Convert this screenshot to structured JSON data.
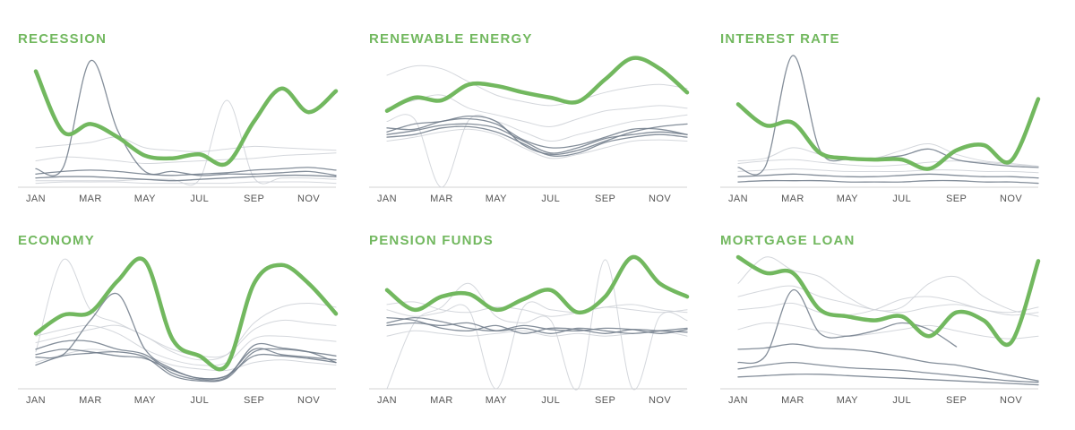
{
  "colors": {
    "highlight": "#72b85f",
    "title": "#72b85f",
    "context_dark": "#6e7a88",
    "context_light": "#cfd3d8",
    "axis": "#d3d3d3",
    "tick_text": "#555555"
  },
  "x_tick_labels": [
    "JAN",
    "MAR",
    "MAY",
    "JUL",
    "SEP",
    "NOV"
  ],
  "chart_data": [
    {
      "type": "line",
      "title": "RECESSION",
      "x": [
        "JAN",
        "FEB",
        "MAR",
        "APR",
        "MAY",
        "JUN",
        "JUL",
        "AUG",
        "SEP",
        "OCT",
        "NOV",
        "DEC"
      ],
      "ylim": [
        0,
        100
      ],
      "grid": false,
      "highlight": [
        88,
        42,
        48,
        38,
        24,
        22,
        25,
        18,
        50,
        75,
        57,
        73
      ],
      "context_dark": [
        [
          14,
          15,
          96,
          43,
          12,
          12,
          9,
          10,
          10,
          11,
          12,
          9
        ],
        [
          10,
          12,
          13,
          12,
          10,
          9,
          10,
          11,
          13,
          14,
          15,
          13
        ],
        [
          7,
          8,
          8,
          7,
          6,
          5,
          6,
          7,
          8,
          9,
          9,
          8
        ]
      ],
      "context_light": [
        [
          5,
          5,
          5,
          5,
          6,
          6,
          6,
          66,
          7,
          7,
          7,
          6
        ],
        [
          20,
          23,
          22,
          20,
          18,
          19,
          20,
          21,
          22,
          24,
          25,
          26
        ],
        [
          30,
          32,
          34,
          38,
          30,
          28,
          27,
          29,
          31,
          30,
          29,
          28
        ],
        [
          3,
          4,
          4,
          4,
          3,
          3,
          3,
          3,
          4,
          4,
          4,
          3
        ]
      ]
    },
    {
      "type": "line",
      "title": "RENEWABLE ENERGY",
      "x": [
        "JAN",
        "FEB",
        "MAR",
        "APR",
        "MAY",
        "JUN",
        "JUL",
        "AUG",
        "SEP",
        "OCT",
        "NOV",
        "DEC"
      ],
      "ylim": [
        0,
        100
      ],
      "grid": false,
      "highlight": [
        58,
        68,
        66,
        78,
        77,
        72,
        68,
        65,
        82,
        98,
        90,
        72
      ],
      "context_dark": [
        [
          42,
          48,
          50,
          54,
          50,
          32,
          25,
          28,
          35,
          42,
          46,
          48
        ],
        [
          45,
          44,
          50,
          52,
          48,
          36,
          30,
          32,
          38,
          44,
          44,
          40
        ],
        [
          40,
          43,
          47,
          48,
          45,
          35,
          26,
          30,
          37,
          40,
          42,
          40
        ],
        [
          38,
          40,
          45,
          46,
          42,
          33,
          24,
          26,
          34,
          38,
          40,
          38
        ]
      ],
      "context_light": [
        [
          50,
          52,
          0,
          51,
          50,
          42,
          35,
          40,
          45,
          50,
          52,
          55
        ],
        [
          60,
          66,
          70,
          60,
          55,
          50,
          46,
          52,
          58,
          60,
          62,
          60
        ],
        [
          35,
          38,
          42,
          44,
          40,
          30,
          22,
          25,
          30,
          35,
          36,
          35
        ],
        [
          85,
          92,
          90,
          80,
          70,
          65,
          62,
          66,
          72,
          76,
          78,
          75
        ]
      ]
    },
    {
      "type": "line",
      "title": "INTEREST RATE",
      "x": [
        "JAN",
        "FEB",
        "MAR",
        "APR",
        "MAY",
        "JUN",
        "JUL",
        "AUG",
        "SEP",
        "OCT",
        "NOV",
        "DEC"
      ],
      "ylim": [
        0,
        100
      ],
      "grid": false,
      "highlight": [
        63,
        47,
        49,
        26,
        22,
        21,
        21,
        14,
        28,
        32,
        20,
        67
      ],
      "context_dark": [
        [
          15,
          16,
          100,
          28,
          21,
          22,
          24,
          29,
          21,
          18,
          16,
          15
        ],
        [
          8,
          9,
          10,
          9,
          8,
          8,
          9,
          10,
          9,
          8,
          8,
          7
        ],
        [
          4,
          5,
          5,
          5,
          4,
          4,
          4,
          5,
          5,
          4,
          4,
          3
        ]
      ],
      "context_light": [
        [
          20,
          22,
          30,
          25,
          22,
          22,
          28,
          33,
          25,
          20,
          18,
          16
        ],
        [
          12,
          13,
          14,
          13,
          12,
          12,
          12,
          13,
          13,
          12,
          12,
          11
        ],
        [
          18,
          20,
          21,
          19,
          17,
          16,
          17,
          19,
          20,
          19,
          17,
          16
        ]
      ]
    },
    {
      "type": "line",
      "title": "ECONOMY",
      "x": [
        "JAN",
        "FEB",
        "MAR",
        "APR",
        "MAY",
        "JUN",
        "JUL",
        "AUG",
        "SEP",
        "OCT",
        "NOV",
        "DEC"
      ],
      "ylim": [
        0,
        100
      ],
      "grid": false,
      "highlight": [
        42,
        56,
        58,
        82,
        97,
        38,
        25,
        18,
        80,
        94,
        80,
        57
      ],
      "context_dark": [
        [
          24,
          26,
          52,
          72,
          30,
          15,
          8,
          10,
          30,
          26,
          24,
          22
        ],
        [
          26,
          30,
          28,
          25,
          23,
          14,
          8,
          10,
          25,
          25,
          23,
          20
        ],
        [
          18,
          25,
          27,
          28,
          24,
          10,
          6,
          8,
          28,
          30,
          28,
          25
        ],
        [
          30,
          36,
          36,
          30,
          26,
          12,
          7,
          9,
          33,
          31,
          28,
          20
        ]
      ],
      "context_light": [
        [
          28,
          98,
          60,
          50,
          40,
          30,
          25,
          26,
          45,
          52,
          50,
          48
        ],
        [
          35,
          40,
          45,
          48,
          40,
          28,
          22,
          26,
          50,
          62,
          65,
          62
        ],
        [
          20,
          26,
          30,
          28,
          25,
          18,
          15,
          14,
          20,
          22,
          20,
          18
        ],
        [
          40,
          45,
          48,
          42,
          30,
          22,
          18,
          20,
          38,
          40,
          38,
          36
        ]
      ]
    },
    {
      "type": "line",
      "title": "PENSION FUNDS",
      "x": [
        "JAN",
        "FEB",
        "MAR",
        "APR",
        "MAY",
        "JUN",
        "JUL",
        "AUG",
        "SEP",
        "OCT",
        "NOV",
        "DEC"
      ],
      "ylim": [
        0,
        100
      ],
      "grid": false,
      "highlight": [
        75,
        60,
        70,
        72,
        60,
        68,
        75,
        58,
        70,
        100,
        80,
        70
      ],
      "context_dark": [
        [
          50,
          54,
          51,
          46,
          44,
          48,
          45,
          44,
          46,
          45,
          42,
          45
        ],
        [
          54,
          52,
          46,
          44,
          48,
          42,
          46,
          45,
          42,
          45,
          44,
          43
        ],
        [
          48,
          50,
          48,
          50,
          44,
          46,
          42,
          46,
          44,
          42,
          44,
          46
        ]
      ],
      "context_light": [
        [
          60,
          55,
          58,
          60,
          0,
          62,
          60,
          58,
          62,
          60,
          58,
          60
        ],
        [
          0,
          50,
          62,
          80,
          55,
          50,
          52,
          0,
          98,
          0,
          55,
          52
        ],
        [
          64,
          66,
          60,
          58,
          62,
          60,
          55,
          58,
          62,
          64,
          60,
          58
        ],
        [
          40,
          44,
          42,
          40,
          42,
          44,
          40,
          42,
          40,
          42,
          44,
          40
        ]
      ]
    },
    {
      "type": "line",
      "title": "MORTGAGE LOAN",
      "x": [
        "JAN",
        "FEB",
        "MAR",
        "APR",
        "MAY",
        "JUN",
        "JUL",
        "AUG",
        "SEP",
        "OCT",
        "NOV",
        "DEC"
      ],
      "ylim": [
        0,
        100
      ],
      "grid": false,
      "highlight": [
        100,
        88,
        88,
        60,
        55,
        52,
        55,
        40,
        58,
        52,
        35,
        97
      ],
      "context_dark": [
        [
          20,
          25,
          75,
          42,
          40,
          44,
          50,
          45,
          32,
          null,
          null,
          null
        ],
        [
          30,
          31,
          34,
          31,
          30,
          28,
          24,
          20,
          18,
          14,
          10,
          6
        ],
        [
          15,
          18,
          20,
          18,
          16,
          15,
          14,
          12,
          10,
          8,
          6,
          5
        ],
        [
          9,
          10,
          11,
          11,
          10,
          9,
          8,
          7,
          6,
          5,
          4,
          3
        ]
      ],
      "context_light": [
        [
          80,
          100,
          90,
          85,
          70,
          60,
          62,
          80,
          85,
          70,
          60,
          55
        ],
        [
          60,
          62,
          65,
          58,
          56,
          60,
          68,
          70,
          66,
          60,
          58,
          62
        ],
        [
          45,
          50,
          48,
          44,
          40,
          42,
          45,
          48,
          44,
          40,
          38,
          40
        ],
        [
          70,
          75,
          78,
          70,
          65,
          60,
          58,
          62,
          64,
          60,
          56,
          58
        ]
      ]
    }
  ]
}
